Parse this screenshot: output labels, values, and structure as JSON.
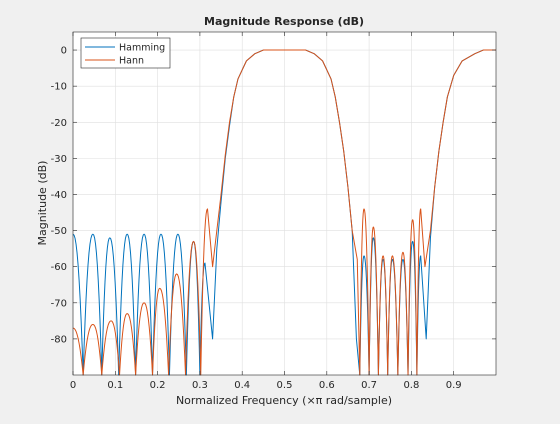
{
  "figure": {
    "background": "#f0f0f0",
    "axes_background": "#ffffff"
  },
  "chart_data": {
    "type": "line",
    "title": "Magnitude Response (dB)",
    "xlabel": "Normalized Frequency (×π rad/sample)",
    "ylabel": "Magnitude (dB)",
    "xlim": [
      0,
      1
    ],
    "ylim": [
      -90,
      5
    ],
    "xticks": [
      0,
      0.1,
      0.2,
      0.3,
      0.4,
      0.5,
      0.6,
      0.7,
      0.8,
      0.9
    ],
    "xtick_labels": [
      "0",
      "0.1",
      "0.2",
      "0.3",
      "0.4",
      "0.5",
      "0.6",
      "0.7",
      "0.8",
      "0.9"
    ],
    "yticks": [
      0,
      -10,
      -20,
      -30,
      -40,
      -50,
      -60,
      -70,
      -80
    ],
    "ytick_labels": [
      "0",
      "-10",
      "-20",
      "-30",
      "-40",
      "-50",
      "-60",
      "-70",
      "-80"
    ],
    "grid": true,
    "legend_position": "top-left",
    "series": [
      {
        "name": "Hamming",
        "color": "#0072bd",
        "description": "bandpass FIR, passband ~0.45-0.55 and highpass region ~0.9-1.0, sidelobes near -51 dB",
        "lobe_peaks": [
          [
            0.0,
            -51
          ],
          [
            0.047,
            -51
          ],
          [
            0.087,
            -52
          ],
          [
            0.128,
            -51
          ],
          [
            0.168,
            -51
          ],
          [
            0.208,
            -51
          ],
          [
            0.248,
            -51
          ],
          [
            0.285,
            -53
          ],
          [
            0.312,
            -59
          ]
        ],
        "nulls": [
          0.024,
          0.068,
          0.108,
          0.148,
          0.188,
          0.228,
          0.268,
          0.3
        ],
        "rise_points": [
          [
            0.33,
            -80
          ],
          [
            0.34,
            -55
          ],
          [
            0.35,
            -42
          ],
          [
            0.36,
            -30
          ],
          [
            0.37,
            -21
          ],
          [
            0.38,
            -13
          ],
          [
            0.39,
            -8
          ],
          [
            0.41,
            -3
          ],
          [
            0.43,
            -1
          ],
          [
            0.45,
            0
          ],
          [
            0.5,
            0
          ],
          [
            0.55,
            0
          ],
          [
            0.57,
            -1
          ],
          [
            0.59,
            -3
          ],
          [
            0.61,
            -8
          ],
          [
            0.62,
            -13
          ],
          [
            0.63,
            -20
          ],
          [
            0.64,
            -28
          ],
          [
            0.65,
            -38
          ],
          [
            0.66,
            -50
          ],
          [
            0.67,
            -80
          ]
        ],
        "stopband2_peaks": [
          [
            0.688,
            -57
          ],
          [
            0.71,
            -52
          ],
          [
            0.733,
            -58
          ],
          [
            0.755,
            -58
          ],
          [
            0.78,
            -58
          ],
          [
            0.803,
            -53
          ],
          [
            0.822,
            -57
          ]
        ],
        "stopband2_nulls": [
          0.678,
          0.7,
          0.722,
          0.744,
          0.768,
          0.792,
          0.813
        ],
        "rise2_points": [
          [
            0.835,
            -80
          ],
          [
            0.845,
            -52
          ],
          [
            0.855,
            -38
          ],
          [
            0.865,
            -28
          ],
          [
            0.875,
            -20
          ],
          [
            0.885,
            -13
          ],
          [
            0.9,
            -7
          ],
          [
            0.92,
            -3
          ],
          [
            0.95,
            -1
          ],
          [
            0.97,
            0
          ],
          [
            1.0,
            0
          ]
        ]
      },
      {
        "name": "Hann",
        "color": "#d95319",
        "description": "bandpass FIR with Hann window, sidelobes rising from ~-80 dB to ~-44 dB near band edges",
        "lobe_peaks": [
          [
            0.0,
            -77
          ],
          [
            0.047,
            -76
          ],
          [
            0.09,
            -75
          ],
          [
            0.128,
            -73
          ],
          [
            0.168,
            -70
          ],
          [
            0.205,
            -66
          ],
          [
            0.245,
            -62
          ],
          [
            0.285,
            -53
          ],
          [
            0.318,
            -44
          ]
        ],
        "nulls": [
          0.024,
          0.068,
          0.11,
          0.148,
          0.188,
          0.226,
          0.266,
          0.302
        ],
        "rise_points": [
          [
            0.33,
            -60
          ],
          [
            0.34,
            -50
          ],
          [
            0.35,
            -40
          ],
          [
            0.36,
            -29
          ],
          [
            0.37,
            -20
          ],
          [
            0.38,
            -13
          ],
          [
            0.39,
            -8
          ],
          [
            0.41,
            -3
          ],
          [
            0.43,
            -1
          ],
          [
            0.45,
            0
          ],
          [
            0.5,
            0
          ],
          [
            0.55,
            0
          ],
          [
            0.57,
            -1
          ],
          [
            0.59,
            -3
          ],
          [
            0.61,
            -8
          ],
          [
            0.62,
            -13
          ],
          [
            0.63,
            -20
          ],
          [
            0.64,
            -28
          ],
          [
            0.65,
            -38
          ],
          [
            0.66,
            -50
          ],
          [
            0.672,
            -58
          ]
        ],
        "stopband2_peaks": [
          [
            0.688,
            -44
          ],
          [
            0.71,
            -49
          ],
          [
            0.733,
            -57
          ],
          [
            0.755,
            -57
          ],
          [
            0.78,
            -56
          ],
          [
            0.803,
            -47
          ],
          [
            0.822,
            -44
          ]
        ],
        "stopband2_nulls": [
          0.678,
          0.7,
          0.722,
          0.744,
          0.768,
          0.792,
          0.813
        ],
        "rise2_points": [
          [
            0.832,
            -60
          ],
          [
            0.845,
            -50
          ],
          [
            0.855,
            -38
          ],
          [
            0.865,
            -28
          ],
          [
            0.875,
            -20
          ],
          [
            0.885,
            -13
          ],
          [
            0.9,
            -7
          ],
          [
            0.92,
            -3
          ],
          [
            0.95,
            -1
          ],
          [
            0.97,
            0
          ],
          [
            1.0,
            0
          ]
        ]
      }
    ]
  }
}
